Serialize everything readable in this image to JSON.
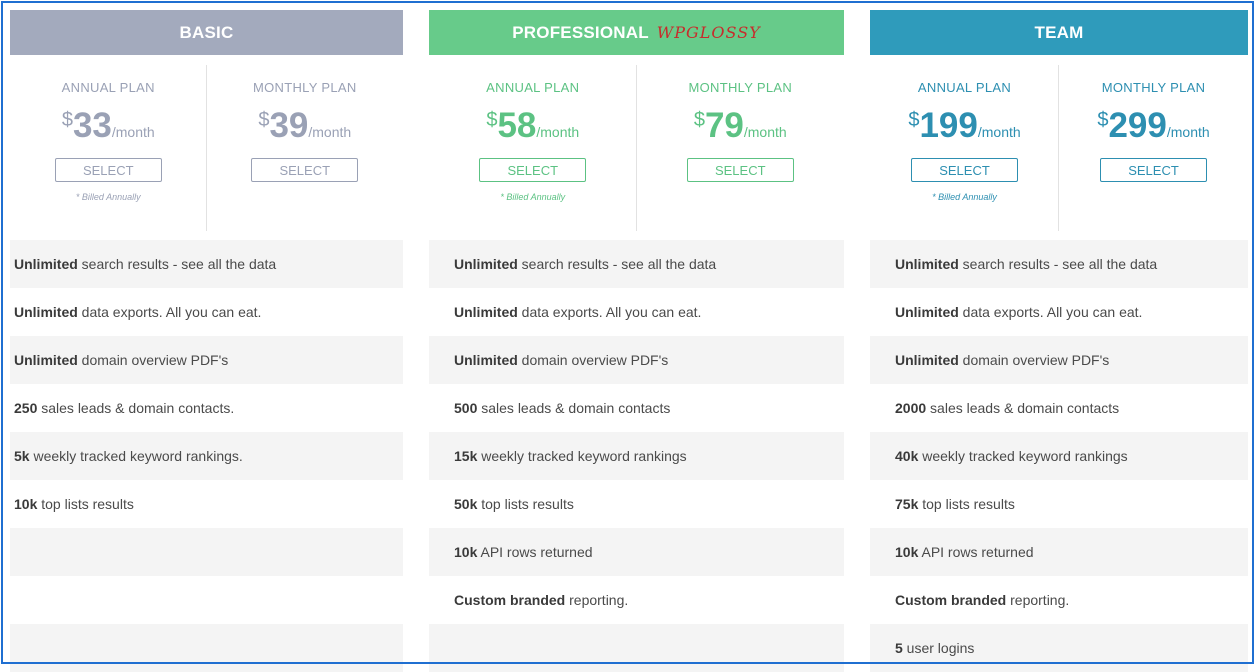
{
  "colors": {
    "basic": "#a3aabd",
    "professional": "#67cb8a",
    "team": "#2f9bbb",
    "frame": "#1f6fd1"
  },
  "columns": [
    {
      "title": "BASIC",
      "watermark": "",
      "annual": {
        "label": "ANNUAL PLAN",
        "currency": "$",
        "amount": "33",
        "per": "/month",
        "button": "SELECT",
        "note": "* Billed Annually"
      },
      "monthly": {
        "label": "MONTHLY PLAN",
        "currency": "$",
        "amount": "39",
        "per": "/month",
        "button": "SELECT"
      },
      "features": [
        {
          "bold": "Unlimited",
          "text": " search results - see all the data"
        },
        {
          "bold": "Unlimited",
          "text": " data exports. All you can eat."
        },
        {
          "bold": "Unlimited",
          "text": " domain overview PDF's"
        },
        {
          "bold": "250",
          "text": " sales leads & domain contacts."
        },
        {
          "bold": "5k",
          "text": " weekly tracked keyword rankings."
        },
        {
          "bold": "10k",
          "text": " top lists results"
        },
        {
          "bold": "",
          "text": ""
        },
        {
          "bold": "",
          "text": ""
        },
        {
          "bold": "",
          "text": ""
        }
      ]
    },
    {
      "title": "PROFESSIONAL",
      "watermark": "WPGLOSSY",
      "annual": {
        "label": "ANNUAL PLAN",
        "currency": "$",
        "amount": "58",
        "per": "/month",
        "button": "SELECT",
        "note": "* Billed Annually"
      },
      "monthly": {
        "label": "MONTHLY PLAN",
        "currency": "$",
        "amount": "79",
        "per": "/month",
        "button": "SELECT"
      },
      "features": [
        {
          "bold": "Unlimited",
          "text": " search results - see all the data"
        },
        {
          "bold": "Unlimited",
          "text": " data exports. All you can eat."
        },
        {
          "bold": "Unlimited",
          "text": " domain overview PDF's"
        },
        {
          "bold": "500",
          "text": " sales leads & domain contacts"
        },
        {
          "bold": "15k",
          "text": " weekly tracked keyword rankings"
        },
        {
          "bold": "50k",
          "text": " top lists results"
        },
        {
          "bold": "10k",
          "text": " API rows returned"
        },
        {
          "bold": "Custom branded",
          "text": " reporting."
        },
        {
          "bold": "",
          "text": ""
        }
      ]
    },
    {
      "title": "TEAM",
      "watermark": "",
      "annual": {
        "label": "ANNUAL PLAN",
        "currency": "$",
        "amount": "199",
        "per": "/month",
        "button": "SELECT",
        "note": "* Billed Annually"
      },
      "monthly": {
        "label": "MONTHLY PLAN",
        "currency": "$",
        "amount": "299",
        "per": "/month",
        "button": "SELECT"
      },
      "features": [
        {
          "bold": "Unlimited",
          "text": " search results - see all the data"
        },
        {
          "bold": "Unlimited",
          "text": " data exports. All you can eat."
        },
        {
          "bold": "Unlimited",
          "text": " domain overview PDF's"
        },
        {
          "bold": "2000",
          "text": " sales leads & domain contacts"
        },
        {
          "bold": "40k",
          "text": " weekly tracked keyword rankings"
        },
        {
          "bold": "75k",
          "text": " top lists results"
        },
        {
          "bold": "10k",
          "text": " API rows returned"
        },
        {
          "bold": "Custom branded",
          "text": " reporting."
        },
        {
          "bold": "5",
          "text": " user logins"
        }
      ]
    }
  ]
}
